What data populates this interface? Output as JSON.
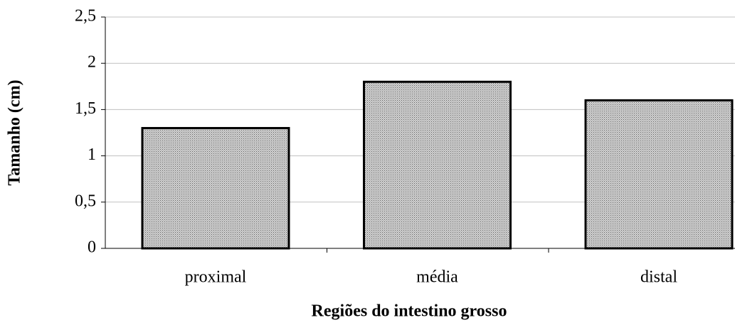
{
  "chart_data": {
    "type": "bar",
    "x_label": "Regiões do intestino grosso",
    "y_label": "Tamanho (cm)",
    "categories": [
      "proximal",
      "média",
      "distal"
    ],
    "values": [
      1.3,
      1.8,
      1.6
    ],
    "color": "#d0d0d0",
    "ylim": [
      0,
      2.5
    ],
    "yticks": [
      0,
      {
        "value": 0.5,
        "label": "0,5"
      },
      1,
      {
        "value": 1.5,
        "label": "1,5"
      },
      2,
      {
        "value": 2.5,
        "label": "2,5"
      }
    ],
    "grid": true
  }
}
